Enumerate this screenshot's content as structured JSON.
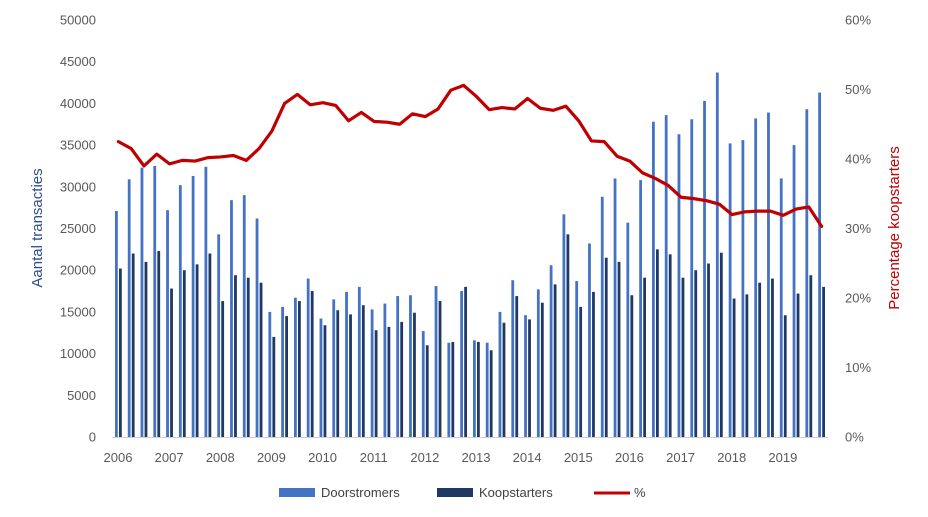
{
  "chart_data": {
    "type": "bar",
    "title": "",
    "ylabel": "Aantal transacties",
    "y2label": "Percentage koopstarters",
    "ylim": [
      0,
      50000
    ],
    "y2lim": [
      0,
      60
    ],
    "yticks": [
      "0",
      "5000",
      "10000",
      "15000",
      "20000",
      "25000",
      "30000",
      "35000",
      "40000",
      "45000",
      "50000"
    ],
    "y2ticks": [
      "0%",
      "10%",
      "20%",
      "30%",
      "40%",
      "50%",
      "60%"
    ],
    "year_labels": [
      "2006",
      "2007",
      "2008",
      "2009",
      "2010",
      "2011",
      "2012",
      "2013",
      "2014",
      "2015",
      "2016",
      "2017",
      "2018",
      "2019"
    ],
    "periods_per_year": 4,
    "grid": false,
    "legend_position": "bottom",
    "colors": {
      "doorstromers": "#4472C4",
      "koopstarters": "#1F3864",
      "pct": "#C00000"
    },
    "series": [
      {
        "name": "Doorstromers",
        "kind": "bar",
        "values": [
          27100,
          30900,
          32300,
          32500,
          27200,
          30200,
          31300,
          32400,
          24300,
          28400,
          29000,
          26200,
          15000,
          15600,
          16700,
          19000,
          14200,
          16500,
          17400,
          18000,
          15300,
          16000,
          16900,
          17000,
          12700,
          18100,
          11300,
          17500,
          11600,
          11300,
          15000,
          18800,
          14600,
          17700,
          20600,
          26700,
          18700,
          23200,
          28800,
          31000,
          25700,
          30800,
          37800,
          38600,
          36300,
          38100,
          40300,
          43700,
          35200,
          35600,
          38200,
          38900,
          31000,
          35000,
          39300,
          41300
        ]
      },
      {
        "name": "Koopstarters",
        "kind": "bar",
        "values": [
          20200,
          22000,
          21000,
          22300,
          17800,
          20000,
          20700,
          22000,
          16300,
          19400,
          19100,
          18500,
          12000,
          14500,
          16300,
          17500,
          13400,
          15200,
          14700,
          15800,
          12800,
          13200,
          13800,
          14900,
          11000,
          16300,
          11400,
          18000,
          11400,
          10400,
          13700,
          16900,
          14100,
          16100,
          18300,
          24300,
          15600,
          17400,
          21500,
          21000,
          17000,
          19100,
          22500,
          21900,
          19100,
          20000,
          20800,
          22100,
          16600,
          17100,
          18500,
          19000,
          14600,
          17200,
          19400,
          18000
        ]
      },
      {
        "name": "%",
        "kind": "line",
        "values": [
          42.5,
          41.5,
          39,
          40.7,
          39.3,
          39.8,
          39.7,
          40.2,
          40.3,
          40.5,
          39.8,
          41.5,
          44,
          48,
          49.3,
          47.8,
          48.1,
          47.7,
          45.5,
          46.7,
          45.4,
          45.3,
          45,
          46.5,
          46.1,
          47.2,
          49.9,
          50.6,
          49,
          47.1,
          47.4,
          47.2,
          48.7,
          47.3,
          47,
          47.6,
          45.5,
          42.6,
          42.5,
          40.4,
          39.7,
          38,
          37.2,
          36.2,
          34.5,
          34.3,
          34,
          33.5,
          32,
          32.4,
          32.5,
          32.5,
          31.9,
          32.8,
          33.1,
          30.3
        ]
      }
    ]
  }
}
